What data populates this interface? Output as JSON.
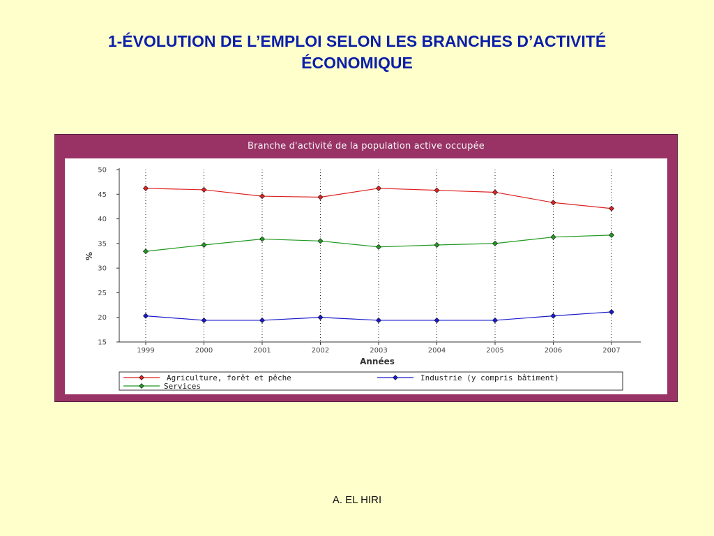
{
  "slide": {
    "title_line1": "1-ÉVOLUTION DE L’EMPLOI SELON LES BRANCHES D’ACTIVITÉ",
    "title_line2": "ÉCONOMIQUE",
    "author": "A. EL HIRI"
  },
  "colors": {
    "background": "#ffffcc",
    "title": "#0b1fa8",
    "frame": "#993366",
    "agriculture": "#dd2222",
    "industrie": "#1a1acc",
    "services": "#229922"
  },
  "chart_data": {
    "type": "line",
    "title": "Branche d'activité de la population active occupée",
    "xlabel": "Années",
    "ylabel": "%",
    "categories": [
      "1999",
      "2000",
      "2001",
      "2002",
      "2003",
      "2004",
      "2005",
      "2006",
      "2007"
    ],
    "yticks": [
      15,
      20,
      25,
      30,
      35,
      40,
      45,
      50
    ],
    "ylim": [
      15,
      50
    ],
    "grid": "vertical dotted",
    "legend_position": "bottom",
    "series": [
      {
        "name": "Agriculture, forêt et pêche",
        "color": "#dd2222",
        "marker": "diamond",
        "values": [
          46.2,
          45.9,
          44.6,
          44.4,
          46.2,
          45.8,
          45.4,
          43.3,
          42.1
        ]
      },
      {
        "name": "Industrie (y compris bâtiment)",
        "color": "#1a1acc",
        "marker": "diamond",
        "values": [
          20.3,
          19.4,
          19.4,
          20.0,
          19.4,
          19.4,
          19.4,
          20.3,
          21.1
        ]
      },
      {
        "name": "Services",
        "color": "#229922",
        "marker": "diamond",
        "values": [
          33.4,
          34.7,
          35.9,
          35.5,
          34.3,
          34.7,
          35.0,
          36.3,
          36.7
        ]
      }
    ]
  }
}
